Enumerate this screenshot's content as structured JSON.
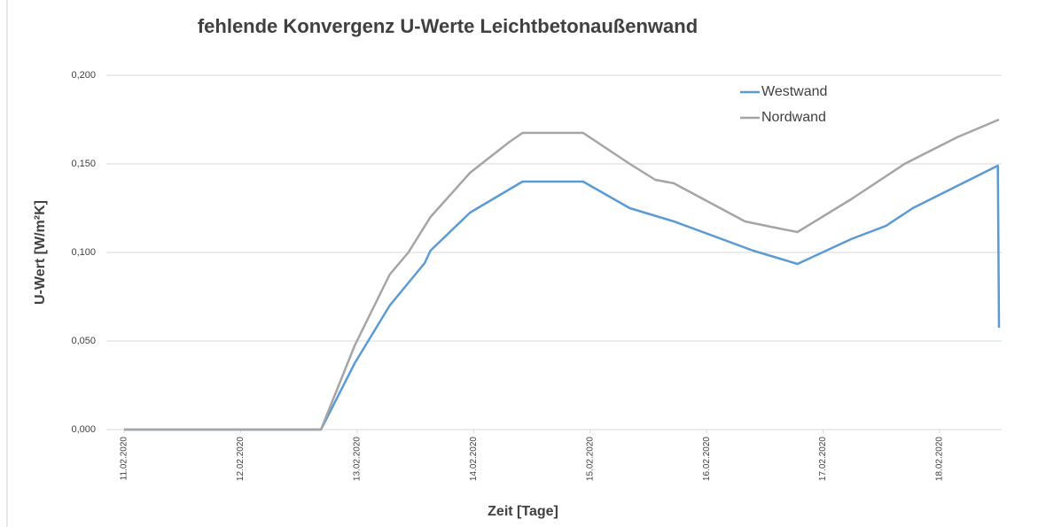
{
  "chart_data": {
    "type": "line",
    "title": "fehlende Konvergenz  U-Werte Leichtbetonaußenwand",
    "x_label": "Zeit [Tage]",
    "y_label": "U-Wert [W/m²K]",
    "xlim": [
      11,
      18.51
    ],
    "xticks": [
      {
        "value": 11,
        "label": "11.02.2020"
      },
      {
        "value": 12,
        "label": "12.02.2020"
      },
      {
        "value": 13,
        "label": "13.02.2020"
      },
      {
        "value": 14,
        "label": "14.02.2020"
      },
      {
        "value": 15,
        "label": "15.02.2020"
      },
      {
        "value": 16,
        "label": "16.02.2020"
      },
      {
        "value": 17,
        "label": "17.02.2020"
      },
      {
        "value": 18,
        "label": "18.02.2020"
      }
    ],
    "ylim": [
      0,
      0.2
    ],
    "yticks": [
      {
        "value": 0,
        "label": "0,000"
      },
      {
        "value": 0.05,
        "label": "0,050"
      },
      {
        "value": 0.1,
        "label": "0,100"
      },
      {
        "value": 0.15,
        "label": "0,150"
      },
      {
        "value": 0.2,
        "label": "0,200"
      }
    ],
    "grid": true,
    "legend": "upper right",
    "series": [
      {
        "name": "Westwand",
        "color": "#5b9bd5",
        "x": [
          11,
          12.69,
          12.98,
          13.28,
          13.58,
          13.63,
          13.97,
          14.42,
          14.94,
          15.34,
          15.72,
          16.4,
          16.78,
          17.24,
          17.54,
          17.77,
          18.15,
          18.5,
          18.51
        ],
        "values": [
          0,
          0,
          0.0375,
          0.07,
          0.094,
          0.101,
          0.1225,
          0.14,
          0.14,
          0.125,
          0.1175,
          0.101,
          0.0935,
          0.1075,
          0.115,
          0.125,
          0.1375,
          0.149,
          0.0575
        ]
      },
      {
        "name": "Nordwand",
        "color": "#a5a5a5",
        "x": [
          11,
          12.69,
          12.98,
          13.28,
          13.44,
          13.63,
          13.97,
          14.31,
          14.42,
          14.94,
          15.34,
          15.56,
          15.72,
          16.33,
          16.55,
          16.78,
          17.24,
          17.7,
          18.15,
          18.51
        ],
        "values": [
          0,
          0,
          0.0475,
          0.0875,
          0.1,
          0.12,
          0.145,
          0.1625,
          0.1675,
          0.1675,
          0.15,
          0.141,
          0.139,
          0.1175,
          0.1145,
          0.1115,
          0.13,
          0.15,
          0.165,
          0.175
        ]
      }
    ]
  }
}
